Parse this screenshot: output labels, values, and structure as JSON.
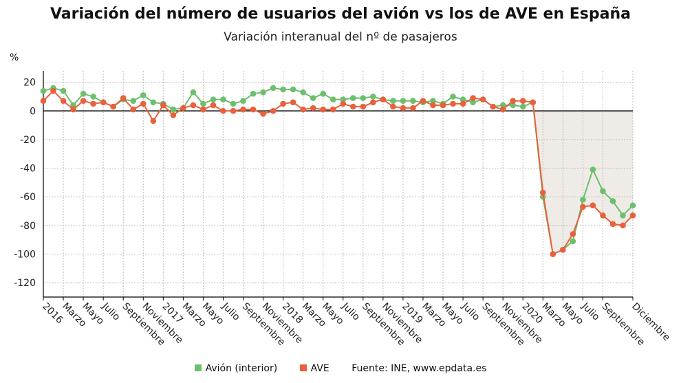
{
  "header": {
    "title": "Variación del número de usuarios del avión vs los de AVE en España",
    "subtitle": "Variación interanual del nº de pasajeros",
    "unit": "%"
  },
  "legend": {
    "avion": "Avión (interior)",
    "ave": "AVE",
    "source": "Fuente: INE, www.epdata.es"
  },
  "colors": {
    "avion": "#6dbf6d",
    "ave": "#e8603c",
    "shade": "#e9e4dd",
    "grid": "#bdbdbd",
    "zero": "#000000"
  },
  "chart_data": {
    "type": "line",
    "title": "Variación del número de usuarios del avión vs los de AVE en España",
    "subtitle": "Variación interanual del nº de pasajeros",
    "ylabel": "%",
    "ylim": [
      -130,
      28
    ],
    "yticks": [
      20,
      0,
      -20,
      -40,
      -60,
      -80,
      -100,
      -120
    ],
    "grid": true,
    "n_points": 60,
    "x_tick_labels": [
      {
        "i": 0,
        "label": "2016"
      },
      {
        "i": 2,
        "label": "Marzo"
      },
      {
        "i": 4,
        "label": "Mayo"
      },
      {
        "i": 6,
        "label": "Julio"
      },
      {
        "i": 8,
        "label": "Septiembre"
      },
      {
        "i": 10,
        "label": "Noviembre"
      },
      {
        "i": 12,
        "label": "2017"
      },
      {
        "i": 14,
        "label": "Marzo"
      },
      {
        "i": 16,
        "label": "Mayo"
      },
      {
        "i": 18,
        "label": "Julio"
      },
      {
        "i": 20,
        "label": "Septiembre"
      },
      {
        "i": 22,
        "label": "Noviembre"
      },
      {
        "i": 24,
        "label": "2018"
      },
      {
        "i": 26,
        "label": "Marzo"
      },
      {
        "i": 28,
        "label": "Mayo"
      },
      {
        "i": 30,
        "label": "Julio"
      },
      {
        "i": 32,
        "label": "Septiembre"
      },
      {
        "i": 34,
        "label": "Noviembre"
      },
      {
        "i": 36,
        "label": "2019"
      },
      {
        "i": 38,
        "label": "Marzo"
      },
      {
        "i": 40,
        "label": "Mayo"
      },
      {
        "i": 42,
        "label": "Julio"
      },
      {
        "i": 44,
        "label": "Septiembre"
      },
      {
        "i": 46,
        "label": "Noviembre"
      },
      {
        "i": 48,
        "label": "2020"
      },
      {
        "i": 50,
        "label": "Marzo"
      },
      {
        "i": 52,
        "label": "Mayo"
      },
      {
        "i": 54,
        "label": "Julio"
      },
      {
        "i": 56,
        "label": "Septiembre"
      },
      {
        "i": 59,
        "label": "Diciembre"
      }
    ],
    "shade_from_index": 48,
    "series": [
      {
        "name": "Avión (interior)",
        "color": "#6dbf6d",
        "values": [
          14,
          16,
          14,
          4,
          12,
          10,
          6,
          3,
          8,
          7,
          11,
          6,
          5,
          1,
          2,
          13,
          5,
          8,
          8,
          5,
          7,
          12,
          13,
          16,
          15,
          15,
          13,
          9,
          12,
          8,
          8,
          9,
          9,
          10,
          8,
          7,
          7,
          7,
          6,
          7,
          5,
          10,
          8,
          6,
          8,
          3,
          4,
          4,
          3,
          6,
          -60,
          -100,
          -97,
          -91,
          -62,
          -41,
          -56,
          -63,
          -73,
          -66
        ]
      },
      {
        "name": "AVE",
        "color": "#e8603c",
        "values": [
          7,
          14,
          7,
          1,
          7,
          5,
          6,
          3,
          9,
          1,
          5,
          -7,
          4,
          -3,
          2,
          4,
          1,
          4,
          0,
          0,
          1,
          1,
          -2,
          0,
          5,
          6,
          1,
          2,
          1,
          1,
          5,
          3,
          3,
          6,
          8,
          3,
          2,
          2,
          7,
          4,
          4,
          5,
          5,
          9,
          8,
          3,
          1,
          7,
          7,
          6,
          -57,
          -100,
          -97,
          -86,
          -67,
          -66,
          -73,
          -79,
          -80,
          -73
        ]
      }
    ]
  }
}
